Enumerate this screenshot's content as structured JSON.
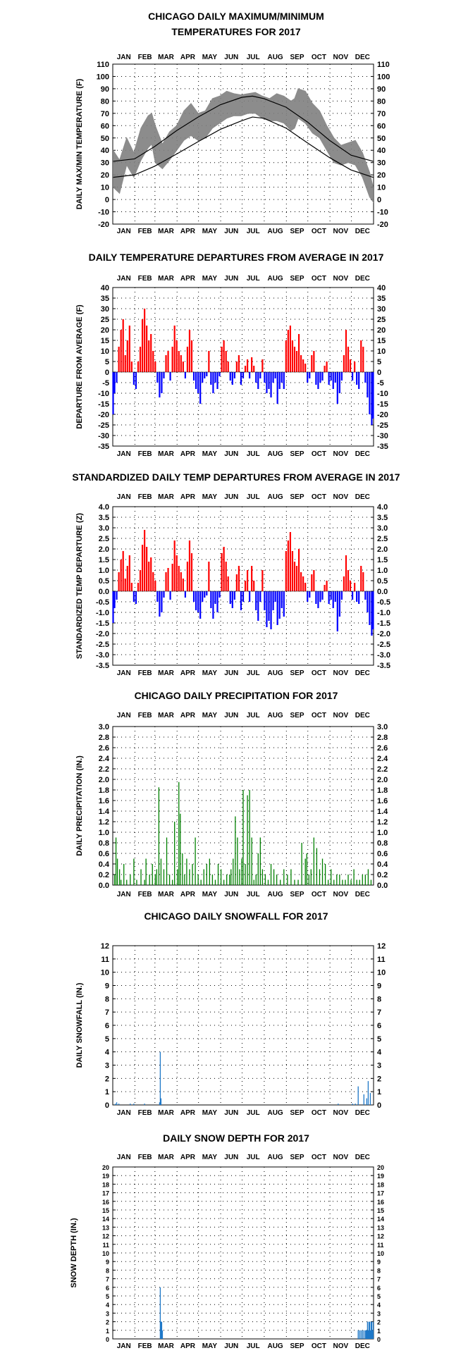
{
  "colors": {
    "range_band": "#808080",
    "normal_line": "#000000",
    "positive": "#ff0000",
    "negative": "#0000ff",
    "precip": "#008000",
    "snow": "#1e78c8"
  },
  "months": [
    "JAN",
    "FEB",
    "MAR",
    "APR",
    "MAY",
    "JUN",
    "JUL",
    "AUG",
    "SEP",
    "OCT",
    "NOV",
    "DEC"
  ],
  "chart_data": [
    {
      "id": "maxmin",
      "type": "area",
      "title": [
        "CHICAGO DAILY MAXIMUM/MINIMUM",
        "TEMPERATURES FOR 2017"
      ],
      "ylabel": "DAILY MAX/MIN TEMPERATURE (F)",
      "ylim": [
        -20,
        110
      ],
      "yticks": [
        -20,
        -10,
        0,
        10,
        20,
        30,
        40,
        50,
        60,
        70,
        80,
        90,
        100,
        110
      ],
      "month_labels_top": true,
      "month_labels_bottom": true,
      "grid": true,
      "x_unit": "day of year",
      "series": [
        {
          "kind": "observed-high",
          "x": [
            1,
            10,
            20,
            30,
            40,
            50,
            55,
            60,
            70,
            80,
            90,
            100,
            110,
            120,
            130,
            140,
            150,
            160,
            170,
            180,
            190,
            200,
            210,
            220,
            230,
            240,
            250,
            255,
            260,
            270,
            280,
            290,
            300,
            310,
            320,
            330,
            340,
            350,
            360,
            365
          ],
          "values": [
            40,
            32,
            50,
            38,
            58,
            68,
            70,
            60,
            45,
            55,
            60,
            72,
            78,
            70,
            72,
            82,
            84,
            88,
            86,
            85,
            86,
            87,
            84,
            82,
            86,
            84,
            80,
            82,
            90,
            88,
            78,
            72,
            60,
            50,
            44,
            46,
            48,
            38,
            22,
            10
          ]
        },
        {
          "kind": "observed-low",
          "x": [
            1,
            10,
            20,
            30,
            40,
            50,
            55,
            60,
            70,
            80,
            90,
            100,
            110,
            120,
            130,
            140,
            150,
            160,
            170,
            180,
            190,
            200,
            210,
            220,
            230,
            240,
            250,
            255,
            260,
            270,
            280,
            290,
            300,
            310,
            320,
            330,
            340,
            350,
            360,
            365
          ],
          "values": [
            10,
            5,
            28,
            18,
            32,
            42,
            45,
            30,
            25,
            32,
            40,
            48,
            52,
            48,
            50,
            58,
            62,
            66,
            68,
            68,
            70,
            70,
            66,
            64,
            64,
            62,
            56,
            58,
            66,
            62,
            54,
            50,
            40,
            30,
            28,
            30,
            28,
            18,
            2,
            -2
          ]
        },
        {
          "name": "",
          "kind": "normal-high",
          "x": [
            1,
            31,
            59,
            90,
            120,
            151,
            181,
            196,
            212,
            243,
            273,
            304,
            334,
            365
          ],
          "values": [
            31,
            33,
            43,
            56,
            67,
            77,
            83,
            84,
            82,
            75,
            63,
            48,
            36,
            31
          ]
        },
        {
          "name": "",
          "kind": "normal-low",
          "x": [
            1,
            31,
            59,
            90,
            120,
            151,
            181,
            196,
            212,
            243,
            273,
            304,
            334,
            365
          ],
          "values": [
            18,
            20,
            27,
            37,
            47,
            57,
            64,
            67,
            66,
            58,
            46,
            34,
            24,
            18
          ]
        }
      ]
    },
    {
      "id": "departure",
      "type": "bar",
      "title": [
        "DAILY TEMPERATURE DEPARTURES FROM AVERAGE IN 2017"
      ],
      "ylabel": "DEPARTURE FROM AVERAGE (F)",
      "ylim": [
        -35,
        40
      ],
      "yticks": [
        -35,
        -30,
        -25,
        -20,
        -15,
        -10,
        -5,
        0,
        5,
        10,
        15,
        20,
        25,
        30,
        35,
        40
      ],
      "month_labels_top": true,
      "month_labels_bottom": true,
      "grid": true,
      "x_unit": "day of year",
      "x": [
        1,
        3,
        6,
        9,
        12,
        15,
        18,
        21,
        24,
        27,
        30,
        33,
        36,
        39,
        42,
        45,
        48,
        51,
        54,
        57,
        60,
        63,
        66,
        69,
        72,
        75,
        78,
        81,
        84,
        87,
        90,
        93,
        96,
        99,
        102,
        105,
        108,
        111,
        114,
        117,
        120,
        123,
        126,
        129,
        132,
        135,
        138,
        141,
        144,
        147,
        150,
        153,
        156,
        159,
        162,
        165,
        168,
        171,
        174,
        177,
        180,
        183,
        186,
        189,
        192,
        195,
        198,
        201,
        204,
        207,
        210,
        213,
        216,
        219,
        222,
        225,
        228,
        231,
        234,
        237,
        240,
        243,
        246,
        249,
        252,
        255,
        258,
        261,
        264,
        267,
        270,
        273,
        276,
        279,
        282,
        285,
        288,
        291,
        294,
        297,
        300,
        303,
        306,
        309,
        312,
        315,
        318,
        321,
        324,
        327,
        330,
        333,
        336,
        339,
        342,
        345,
        348,
        351,
        354,
        357,
        360,
        363,
        365
      ],
      "values": [
        -20,
        -10,
        -5,
        12,
        20,
        25,
        8,
        15,
        22,
        5,
        -6,
        -8,
        5,
        12,
        25,
        30,
        22,
        15,
        18,
        10,
        5,
        -5,
        -12,
        -10,
        -3,
        8,
        10,
        -4,
        12,
        22,
        15,
        10,
        8,
        5,
        -3,
        12,
        20,
        15,
        -4,
        -8,
        -10,
        -15,
        -5,
        -3,
        -2,
        10,
        -6,
        -10,
        -5,
        -8,
        -2,
        12,
        15,
        10,
        5,
        -4,
        -6,
        -3,
        5,
        8,
        -6,
        -3,
        3,
        6,
        -3,
        7,
        3,
        -5,
        -8,
        -3,
        6,
        -5,
        -10,
        -8,
        -12,
        -5,
        -3,
        -15,
        -8,
        -5,
        -8,
        15,
        20,
        22,
        15,
        12,
        10,
        18,
        8,
        6,
        4,
        -5,
        -3,
        8,
        10,
        -6,
        -8,
        -5,
        -4,
        3,
        5,
        -6,
        -4,
        -8,
        -5,
        -15,
        -10,
        -4,
        8,
        20,
        12,
        6,
        -4,
        5,
        -6,
        -8,
        15,
        12,
        -5,
        -12,
        -20,
        -25,
        -22
      ]
    },
    {
      "id": "standardized",
      "type": "bar",
      "title": [
        "STANDARDIZED DAILY TEMP DEPARTURES FROM AVERAGE IN 2017"
      ],
      "ylabel": "STANDARDIZED TEMP DEPARTURE (Z)",
      "ylim": [
        -3.5,
        4.0
      ],
      "yticks": [
        -3.5,
        -3.0,
        -2.5,
        -2.0,
        -1.5,
        -1.0,
        -0.5,
        0.0,
        0.5,
        1.0,
        1.5,
        2.0,
        2.5,
        3.0,
        3.5,
        4.0
      ],
      "tick_decimals": 1,
      "month_labels_top": true,
      "month_labels_bottom": true,
      "grid": true,
      "x_unit": "day of year",
      "x": [
        1,
        3,
        6,
        9,
        12,
        15,
        18,
        21,
        24,
        27,
        30,
        33,
        36,
        39,
        42,
        45,
        48,
        51,
        54,
        57,
        60,
        63,
        66,
        69,
        72,
        75,
        78,
        81,
        84,
        87,
        90,
        93,
        96,
        99,
        102,
        105,
        108,
        111,
        114,
        117,
        120,
        123,
        126,
        129,
        132,
        135,
        138,
        141,
        144,
        147,
        150,
        153,
        156,
        159,
        162,
        165,
        168,
        171,
        174,
        177,
        180,
        183,
        186,
        189,
        192,
        195,
        198,
        201,
        204,
        207,
        210,
        213,
        216,
        219,
        222,
        225,
        228,
        231,
        234,
        237,
        240,
        243,
        246,
        249,
        252,
        255,
        258,
        261,
        264,
        267,
        270,
        273,
        276,
        279,
        282,
        285,
        288,
        291,
        294,
        297,
        300,
        303,
        306,
        309,
        312,
        315,
        318,
        321,
        324,
        327,
        330,
        333,
        336,
        339,
        342,
        345,
        348,
        351,
        354,
        357,
        360,
        363,
        365
      ],
      "values": [
        -1.5,
        -0.8,
        -0.4,
        0.9,
        1.5,
        1.9,
        0.6,
        1.2,
        1.7,
        0.4,
        -0.5,
        -0.6,
        0.4,
        1.0,
        2.2,
        2.9,
        2.1,
        1.4,
        1.6,
        0.9,
        0.5,
        -0.5,
        -1.2,
        -1.0,
        -0.3,
        0.9,
        1.1,
        -0.4,
        1.3,
        2.4,
        1.7,
        1.2,
        0.9,
        0.6,
        -0.3,
        1.4,
        2.4,
        1.8,
        -0.5,
        -0.9,
        -1.0,
        -1.3,
        -0.5,
        -0.3,
        -0.2,
        1.4,
        -0.8,
        -1.3,
        -0.6,
        -1.0,
        -0.3,
        1.8,
        2.1,
        1.4,
        0.7,
        -0.6,
        -0.8,
        -0.4,
        0.8,
        1.2,
        -0.9,
        -0.5,
        0.5,
        1.0,
        -0.5,
        1.2,
        0.5,
        -0.9,
        -1.4,
        -0.5,
        1.0,
        -0.9,
        -1.7,
        -1.4,
        -1.8,
        -0.9,
        -0.5,
        -1.6,
        -1.3,
        -0.8,
        -1.2,
        1.9,
        2.4,
        2.8,
        1.9,
        1.4,
        1.2,
        2.0,
        0.9,
        0.7,
        0.4,
        -0.5,
        -0.3,
        0.8,
        1.0,
        -0.6,
        -0.8,
        -0.5,
        -0.4,
        0.3,
        0.5,
        -0.6,
        -0.4,
        -0.8,
        -0.5,
        -1.9,
        -1.2,
        -0.4,
        0.7,
        1.7,
        1.0,
        0.5,
        -0.4,
        0.4,
        -0.5,
        -0.6,
        1.2,
        0.9,
        -0.4,
        -1.0,
        -1.6,
        -2.1,
        -1.8
      ]
    },
    {
      "id": "precip",
      "type": "bar",
      "title": [
        "CHICAGO DAILY PRECIPITATION FOR 2017"
      ],
      "ylabel": "DAILY PRECIPITATION (IN.)",
      "ylim": [
        0,
        3.0
      ],
      "yticks": [
        0.0,
        0.2,
        0.4,
        0.6,
        0.8,
        1.0,
        1.2,
        1.4,
        1.6,
        1.8,
        2.0,
        2.2,
        2.4,
        2.6,
        2.8,
        3.0
      ],
      "tick_decimals": 1,
      "month_labels_top": true,
      "month_labels_bottom": true,
      "grid": true,
      "x_unit": "day of year",
      "x": [
        3,
        5,
        7,
        10,
        12,
        16,
        20,
        25,
        30,
        34,
        40,
        45,
        47,
        52,
        56,
        60,
        62,
        65,
        68,
        72,
        76,
        80,
        84,
        87,
        91,
        93,
        95,
        98,
        101,
        104,
        108,
        112,
        116,
        120,
        124,
        128,
        132,
        136,
        140,
        144,
        148,
        152,
        156,
        160,
        164,
        166,
        169,
        172,
        175,
        178,
        181,
        183,
        186,
        189,
        192,
        195,
        198,
        201,
        204,
        207,
        210,
        214,
        218,
        222,
        226,
        230,
        235,
        240,
        245,
        250,
        255,
        260,
        265,
        270,
        272,
        275,
        278,
        282,
        286,
        290,
        294,
        298,
        302,
        306,
        310,
        314,
        318,
        322,
        326,
        330,
        334,
        338,
        342,
        346,
        350,
        354,
        358,
        362
      ],
      "values": [
        0.2,
        0.9,
        0.5,
        0.3,
        0.1,
        0.4,
        0.1,
        0.2,
        0.5,
        0.1,
        0.3,
        0.1,
        0.5,
        0.2,
        0.4,
        0.2,
        0.3,
        1.85,
        0.5,
        0.3,
        0.9,
        0.2,
        0.1,
        1.2,
        0.3,
        1.95,
        1.35,
        0.6,
        0.2,
        0.5,
        0.3,
        0.4,
        0.9,
        0.2,
        0.1,
        0.3,
        0.4,
        0.5,
        0.2,
        0.1,
        0.4,
        0.3,
        0.1,
        0.2,
        0.2,
        0.3,
        0.5,
        1.3,
        0.9,
        0.3,
        0.5,
        1.8,
        0.4,
        1.7,
        1.8,
        0.9,
        0.1,
        0.2,
        0.6,
        0.9,
        0.3,
        0.2,
        0.1,
        0.4,
        0.3,
        0.2,
        0.1,
        0.3,
        0.2,
        0.3,
        0.1,
        0.1,
        0.8,
        0.5,
        0.6,
        0.2,
        0.3,
        0.9,
        0.7,
        0.3,
        0.5,
        0.4,
        0.1,
        0.3,
        0.1,
        0.2,
        0.2,
        0.1,
        0.1,
        0.2,
        0.1,
        0.3,
        0.1,
        0.1,
        0.2,
        0.2,
        0.3,
        0.1
      ]
    },
    {
      "id": "snowfall",
      "type": "bar",
      "title": [
        "CHICAGO DAILY SNOWFALL FOR 2017"
      ],
      "ylabel": "DAILY SNOWFALL (IN.)",
      "ylim": [
        0,
        12
      ],
      "yticks": [
        0,
        1,
        2,
        3,
        4,
        5,
        6,
        7,
        8,
        9,
        10,
        11,
        12
      ],
      "month_labels_top": false,
      "month_labels_bottom": true,
      "grid": true,
      "x_unit": "day of year",
      "x": [
        4,
        6,
        9,
        25,
        30,
        45,
        66,
        67,
        68,
        316,
        336,
        340,
        344,
        352,
        356,
        358,
        361
      ],
      "values": [
        0.1,
        0.2,
        0.1,
        0.1,
        0.1,
        0.1,
        0.2,
        4.0,
        0.5,
        0.1,
        0.1,
        0.1,
        1.4,
        0.8,
        0.5,
        1.8,
        0.9
      ]
    },
    {
      "id": "snowdepth",
      "type": "bar",
      "title": [
        "DAILY SNOW DEPTH FOR 2017"
      ],
      "ylabel": "SNOW DEPTH (IN.)",
      "ylim": [
        0,
        20
      ],
      "yticks": [
        0,
        1,
        2,
        3,
        4,
        5,
        6,
        7,
        8,
        9,
        10,
        11,
        12,
        13,
        14,
        15,
        16,
        17,
        18,
        19,
        20
      ],
      "month_labels_top": true,
      "month_labels_bottom": true,
      "grid": true,
      "x_unit": "day of year",
      "x": [
        67,
        68,
        69,
        70,
        344,
        346,
        348,
        350,
        352,
        354,
        355,
        356,
        357,
        358,
        359,
        360,
        361,
        362,
        363,
        364,
        365
      ],
      "values": [
        6,
        2,
        2,
        1,
        1,
        1,
        1,
        1,
        1,
        1,
        1,
        1,
        2,
        1,
        2,
        2,
        1,
        2,
        2,
        1,
        2
      ]
    }
  ]
}
